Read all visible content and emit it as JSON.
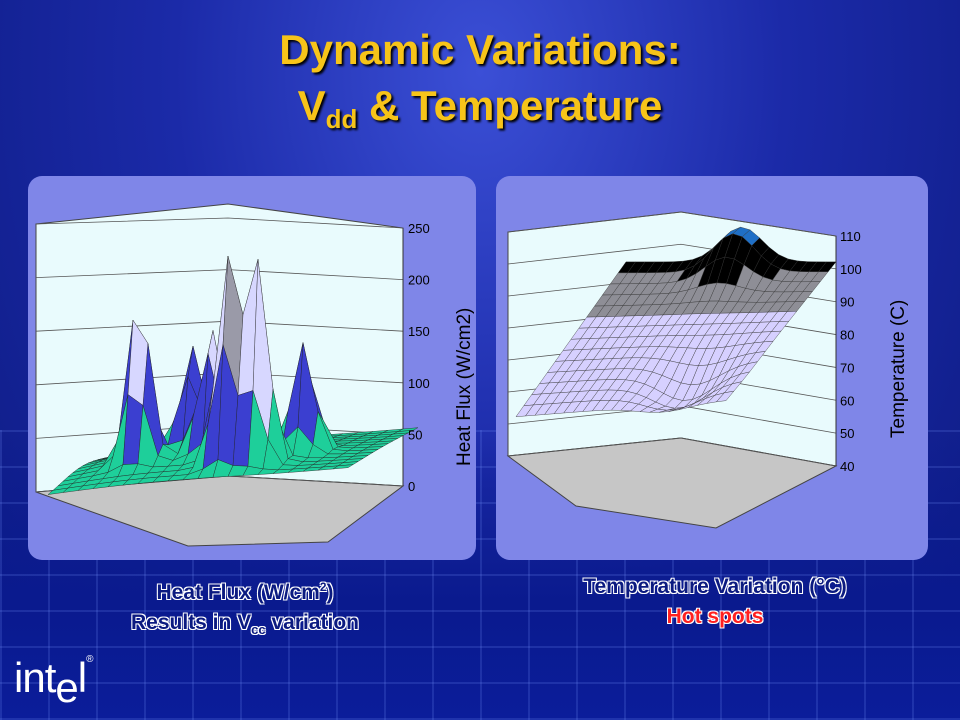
{
  "slide": {
    "title_line1": "Dynamic Variations:",
    "title_line2_prefix": "V",
    "title_line2_sub": "dd",
    "title_line2_suffix": " & Temperature"
  },
  "captions": {
    "left_line1_prefix": "Heat Flux (W/cm",
    "left_line1_sup": "2",
    "left_line1_suffix": ")",
    "left_line2_prefix": "Results in V",
    "left_line2_sub": "cc",
    "left_line2_suffix": " variation",
    "right_line1": "Temperature Variation (°C)",
    "right_line2": "Hot spots"
  },
  "logo": {
    "text_a": "int",
    "text_e": "e",
    "text_l": "l",
    "reg": "®"
  },
  "colors": {
    "title": "#f7c419",
    "background": "#1b2aa8",
    "panel": "#7f86e8",
    "hot_spot_text": "#ff2020"
  },
  "chart_data": [
    {
      "type": "surface",
      "zlabel": "Heat Flux (W/cm2)",
      "zlim": [
        0,
        250
      ],
      "zticks": [
        "0",
        "50",
        "100",
        "150",
        "200",
        "250"
      ],
      "grid": true,
      "bands": [
        {
          "range": [
            0,
            50
          ],
          "color": "#1ecf9a"
        },
        {
          "range": [
            50,
            100
          ],
          "color": "#3b3fd0"
        },
        {
          "range": [
            100,
            150
          ],
          "color": "#d7d7ff"
        },
        {
          "range": [
            150,
            200
          ],
          "color": "#9a9aa8"
        },
        {
          "range": [
            200,
            250
          ],
          "color": "#6f6f7a"
        }
      ],
      "peaks": [
        {
          "x": 0.22,
          "y": 0.35,
          "z": 170
        },
        {
          "x": 0.55,
          "y": 0.2,
          "z": 215
        },
        {
          "x": 0.65,
          "y": 0.22,
          "z": 205
        },
        {
          "x": 0.45,
          "y": 0.4,
          "z": 140
        },
        {
          "x": 0.75,
          "y": 0.45,
          "z": 120
        },
        {
          "x": 0.35,
          "y": 0.55,
          "z": 110
        }
      ]
    },
    {
      "type": "surface",
      "zlabel": "Temperature (C)",
      "zlim": [
        40,
        110
      ],
      "zticks": [
        "40",
        "50",
        "60",
        "70",
        "80",
        "90",
        "100",
        "110"
      ],
      "grid": true,
      "bands": [
        {
          "range": [
            40,
            80
          ],
          "color": "#d6d0ff"
        },
        {
          "range": [
            80,
            90
          ],
          "color": "#8e8e96"
        },
        {
          "range": [
            90,
            100
          ],
          "color": "#000000"
        },
        {
          "range": [
            100,
            110
          ],
          "color": "#1f6fc6"
        }
      ],
      "peak": {
        "z": 110
      },
      "min": {
        "z": 55
      }
    }
  ]
}
